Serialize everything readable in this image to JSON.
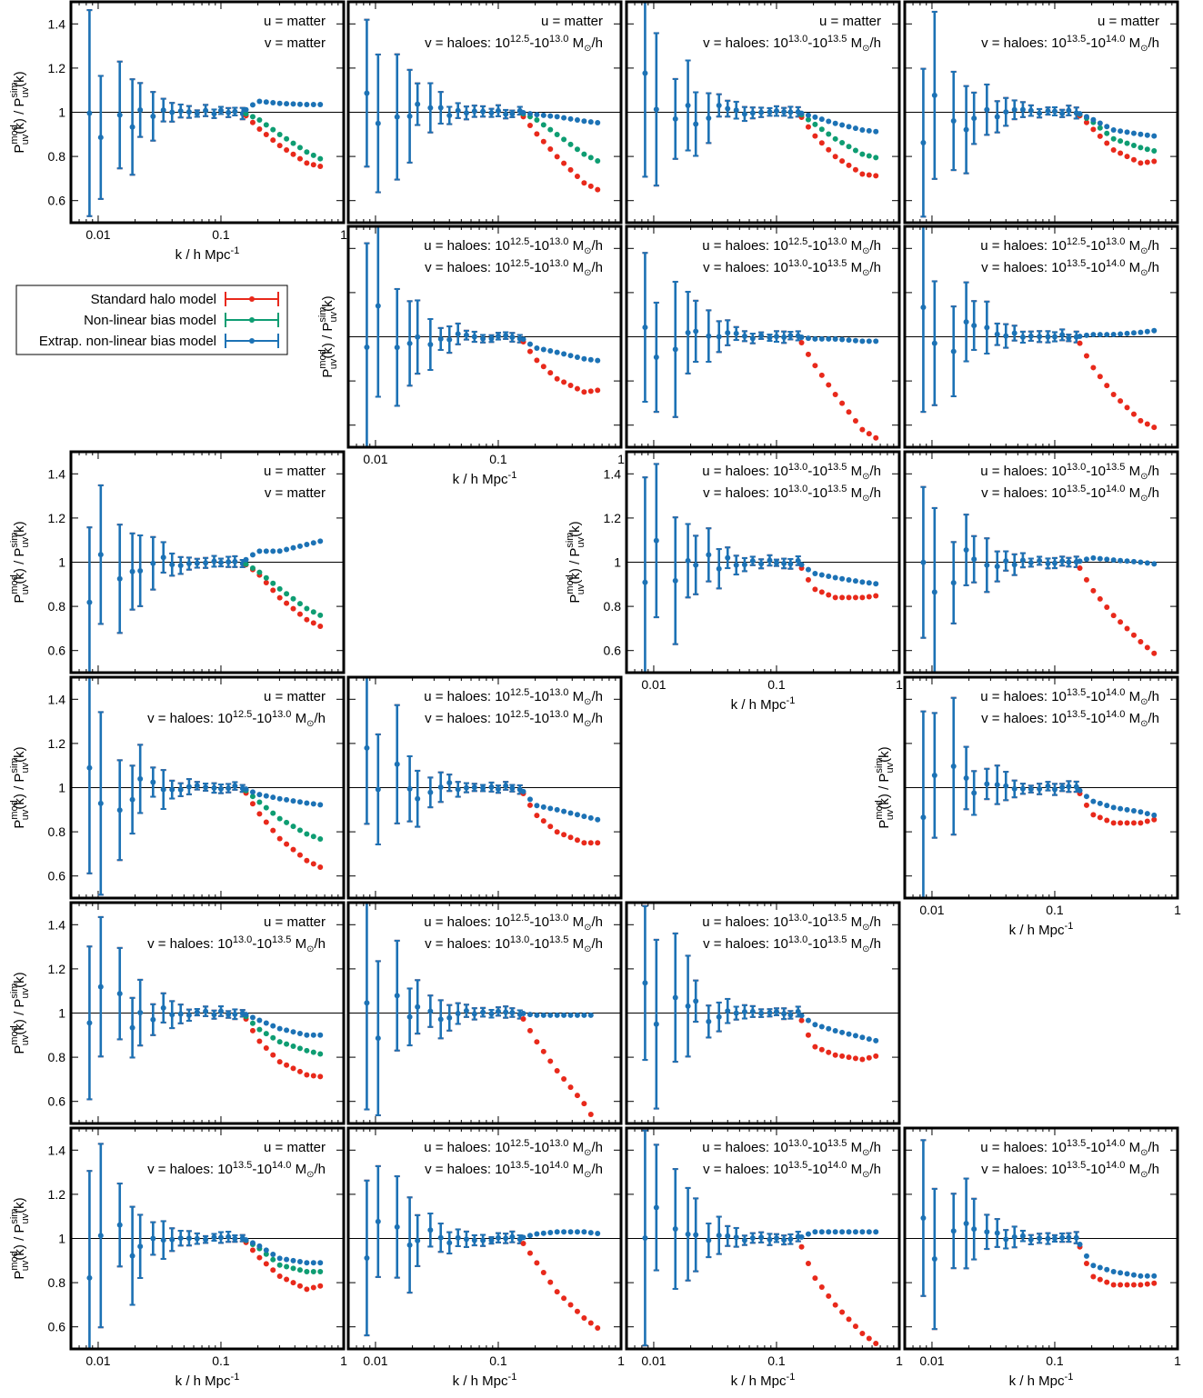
{
  "figure": {
    "xlabel": "k / h Mpc",
    "xlabel_sup": "-1",
    "ylabel": {
      "P": "P",
      "sub": "uv",
      "sup_mod": "mod",
      "sup_sim": "sim",
      "mid": "(k) / ",
      "end": "(k)"
    },
    "xticks": [
      "0.01",
      "0.1",
      "1"
    ],
    "yticks": [
      "0.6",
      "0.8",
      "1",
      "1.2",
      "1.4"
    ],
    "colors": {
      "standard": "#e8291b",
      "nonlinear": "#0e9d72",
      "extrap": "#1c72b5"
    },
    "legend": {
      "items": [
        {
          "label": "Standard halo model",
          "color": "#e8291b"
        },
        {
          "label": "Non-linear bias model",
          "color": "#0e9d72"
        },
        {
          "label": "Extrap. non-linear bias model",
          "color": "#1c72b5"
        }
      ]
    },
    "annotation_labels": {
      "u_matter": "u = matter",
      "v_matter": "v = matter",
      "bin_1": "10^12.5-10^13.0",
      "bin_2": "10^13.0-10^13.5",
      "bin_3": "10^13.5-10^14.0",
      "haloes_prefix": "haloes:",
      "unit": "M_sun/h"
    }
  },
  "chart_data": [
    {
      "type": "scatter",
      "row": 0,
      "col": 0,
      "u": "u = matter",
      "v": "v = matter",
      "xlim": [
        0.006,
        1
      ],
      "ylim": [
        0.5,
        1.5
      ],
      "xscale": "log",
      "series": [
        "standard",
        "nonlinear",
        "extrap"
      ],
      "k": [
        0.2,
        0.3,
        0.5,
        0.7
      ],
      "standard": [
        0.93,
        0.85,
        0.77,
        0.75
      ],
      "nonlinear": [
        0.97,
        0.9,
        0.82,
        0.78
      ],
      "extrap": [
        1.05,
        1.04,
        1.035,
        1.035
      ]
    },
    {
      "type": "scatter",
      "row": 0,
      "col": 1,
      "u": "u = matter",
      "v": "v = haloes: 10^12.5-10^13.0 M_sun/h",
      "xlim": [
        0.006,
        1
      ],
      "ylim": [
        0.5,
        1.5
      ],
      "xscale": "log",
      "k": [
        0.2,
        0.3,
        0.5,
        0.7
      ],
      "standard": [
        0.91,
        0.8,
        0.68,
        0.64
      ],
      "nonlinear": [
        0.97,
        0.9,
        0.81,
        0.77
      ],
      "extrap": [
        0.99,
        0.98,
        0.96,
        0.95
      ]
    },
    {
      "type": "scatter",
      "row": 0,
      "col": 2,
      "u": "u = matter",
      "v": "v = haloes: 10^13.0-10^13.5 M_sun/h",
      "xlim": [
        0.006,
        1
      ],
      "ylim": [
        0.5,
        1.5
      ],
      "xscale": "log",
      "k": [
        0.2,
        0.3,
        0.5,
        0.7
      ],
      "standard": [
        0.9,
        0.8,
        0.72,
        0.71
      ],
      "nonlinear": [
        0.95,
        0.88,
        0.81,
        0.79
      ],
      "extrap": [
        0.98,
        0.95,
        0.92,
        0.91
      ]
    },
    {
      "type": "scatter",
      "row": 0,
      "col": 3,
      "u": "u = matter",
      "v": "v = haloes: 10^13.5-10^14.0 M_sun/h",
      "xlim": [
        0.006,
        1
      ],
      "ylim": [
        0.5,
        1.5
      ],
      "xscale": "log",
      "k": [
        0.2,
        0.3,
        0.5,
        0.7
      ],
      "standard": [
        0.93,
        0.83,
        0.77,
        0.78
      ],
      "nonlinear": [
        0.96,
        0.88,
        0.84,
        0.82
      ],
      "extrap": [
        0.97,
        0.92,
        0.9,
        0.89
      ]
    },
    {
      "type": "scatter",
      "row": 1,
      "col": 1,
      "u": "u = haloes: 10^12.5-10^13.0 M_sun/h",
      "v": "v = haloes: 10^12.5-10^13.0 M_sun/h",
      "k": [
        0.2,
        0.3,
        0.5,
        0.7
      ],
      "standard": [
        0.9,
        0.81,
        0.75,
        0.76
      ],
      "extrap": [
        0.95,
        0.93,
        0.9,
        0.89
      ]
    },
    {
      "type": "scatter",
      "row": 1,
      "col": 2,
      "u": "u = haloes: 10^12.5-10^13.0 M_sun/h",
      "v": "v = haloes: 10^13.0-10^13.5 M_sun/h",
      "k": [
        0.2,
        0.3,
        0.5,
        0.7
      ],
      "standard": [
        0.88,
        0.74,
        0.58,
        0.53
      ],
      "extrap": [
        0.99,
        0.99,
        0.98,
        0.98
      ]
    },
    {
      "type": "scatter",
      "row": 1,
      "col": 3,
      "u": "u = haloes: 10^12.5-10^13.0 M_sun/h",
      "v": "v = haloes: 10^13.5-10^14.0 M_sun/h",
      "k": [
        0.2,
        0.3,
        0.5,
        0.7
      ],
      "standard": [
        0.87,
        0.74,
        0.62,
        0.58
      ],
      "extrap": [
        1.01,
        1.01,
        1.02,
        1.03
      ]
    },
    {
      "type": "scatter",
      "row": 2,
      "col": 0,
      "u": "u = matter",
      "v": "v = matter",
      "k": [
        0.2,
        0.3,
        0.5,
        0.7
      ],
      "standard": [
        0.95,
        0.84,
        0.74,
        0.7
      ],
      "nonlinear": [
        0.96,
        0.88,
        0.79,
        0.75
      ],
      "extrap": [
        1.05,
        1.05,
        1.08,
        1.1
      ]
    },
    {
      "type": "scatter",
      "row": 2,
      "col": 2,
      "u": "u = haloes: 10^13.0-10^13.5 M_sun/h",
      "v": "v = haloes: 10^13.0-10^13.5 M_sun/h",
      "k": [
        0.2,
        0.3,
        0.5,
        0.7
      ],
      "standard": [
        0.88,
        0.84,
        0.84,
        0.85
      ],
      "extrap": [
        0.95,
        0.93,
        0.91,
        0.9
      ]
    },
    {
      "type": "scatter",
      "row": 2,
      "col": 3,
      "u": "u = haloes: 10^13.0-10^13.5 M_sun/h",
      "v": "v = haloes: 10^13.5-10^14.0 M_sun/h",
      "k": [
        0.2,
        0.3,
        0.5,
        0.7
      ],
      "standard": [
        0.88,
        0.76,
        0.64,
        0.57
      ],
      "extrap": [
        1.02,
        1.01,
        1.0,
        0.99
      ]
    },
    {
      "type": "scatter",
      "row": 3,
      "col": 0,
      "u": "u = matter",
      "v": "v = haloes: 10^12.5-10^13.0 M_sun/h",
      "k": [
        0.2,
        0.3,
        0.5,
        0.7
      ],
      "standard": [
        0.89,
        0.77,
        0.67,
        0.63
      ],
      "nonlinear": [
        0.94,
        0.86,
        0.79,
        0.76
      ],
      "extrap": [
        0.97,
        0.95,
        0.93,
        0.92
      ]
    },
    {
      "type": "scatter",
      "row": 3,
      "col": 1,
      "u": "u = haloes: 10^12.5-10^13.0 M_sun/h",
      "v": "v = haloes: 10^12.5-10^13.0 M_sun/h",
      "k": [
        0.2,
        0.3,
        0.5,
        0.7
      ],
      "standard": [
        0.88,
        0.8,
        0.75,
        0.75
      ],
      "extrap": [
        0.92,
        0.9,
        0.87,
        0.85
      ]
    },
    {
      "type": "scatter",
      "row": 3,
      "col": 3,
      "u": "u = haloes: 10^13.5-10^14.0 M_sun/h",
      "v": "v = haloes: 10^13.5-10^14.0 M_sun/h",
      "k": [
        0.2,
        0.3,
        0.5,
        0.7
      ],
      "standard": [
        0.88,
        0.84,
        0.84,
        0.86
      ],
      "extrap": [
        0.94,
        0.91,
        0.89,
        0.87
      ]
    },
    {
      "type": "scatter",
      "row": 4,
      "col": 0,
      "u": "u = matter",
      "v": "v = haloes: 10^13.0-10^13.5 M_sun/h",
      "k": [
        0.2,
        0.3,
        0.5,
        0.7
      ],
      "standard": [
        0.88,
        0.78,
        0.72,
        0.71
      ],
      "nonlinear": [
        0.93,
        0.87,
        0.83,
        0.81
      ],
      "extrap": [
        0.97,
        0.93,
        0.9,
        0.9
      ]
    },
    {
      "type": "scatter",
      "row": 4,
      "col": 1,
      "u": "u = haloes: 10^12.5-10^13.0 M_sun/h",
      "v": "v = haloes: 10^13.0-10^13.5 M_sun/h",
      "k": [
        0.2,
        0.3,
        0.5,
        0.6
      ],
      "standard": [
        0.88,
        0.74,
        0.59,
        0.52
      ],
      "extrap": [
        0.99,
        0.99,
        0.99,
        0.99
      ]
    },
    {
      "type": "scatter",
      "row": 4,
      "col": 2,
      "u": "u = haloes: 10^13.0-10^13.5 M_sun/h",
      "v": "v = haloes: 10^13.0-10^13.5 M_sun/h",
      "k": [
        0.2,
        0.3,
        0.5,
        0.7
      ],
      "standard": [
        0.85,
        0.81,
        0.79,
        0.81
      ],
      "extrap": [
        0.95,
        0.92,
        0.89,
        0.87
      ]
    },
    {
      "type": "scatter",
      "row": 5,
      "col": 0,
      "u": "u = matter",
      "v": "v = haloes: 10^13.5-10^14.0 M_sun/h",
      "k": [
        0.2,
        0.3,
        0.5,
        0.7
      ],
      "standard": [
        0.92,
        0.83,
        0.77,
        0.79
      ],
      "nonlinear": [
        0.96,
        0.88,
        0.85,
        0.85
      ],
      "extrap": [
        0.97,
        0.91,
        0.89,
        0.89
      ]
    },
    {
      "type": "scatter",
      "row": 5,
      "col": 1,
      "u": "u = haloes: 10^12.5-10^13.0 M_sun/h",
      "v": "v = haloes: 10^13.5-10^14.0 M_sun/h",
      "k": [
        0.2,
        0.3,
        0.5,
        0.7
      ],
      "standard": [
        0.9,
        0.76,
        0.64,
        0.58
      ],
      "extrap": [
        1.02,
        1.03,
        1.03,
        1.02
      ]
    },
    {
      "type": "scatter",
      "row": 5,
      "col": 2,
      "u": "u = haloes: 10^13.0-10^13.5 M_sun/h",
      "v": "v = haloes: 10^13.5-10^14.0 M_sun/h",
      "k": [
        0.2,
        0.3,
        0.5,
        0.7
      ],
      "standard": [
        0.83,
        0.7,
        0.57,
        0.51
      ],
      "extrap": [
        1.03,
        1.03,
        1.03,
        1.03
      ]
    },
    {
      "type": "scatter",
      "row": 5,
      "col": 3,
      "u": "u = haloes: 10^13.5-10^14.0 M_sun/h",
      "v": "v = haloes: 10^13.5-10^14.0 M_sun/h",
      "k": [
        0.2,
        0.3,
        0.5,
        0.7
      ],
      "standard": [
        0.83,
        0.79,
        0.79,
        0.8
      ],
      "extrap": [
        0.88,
        0.85,
        0.83,
        0.83
      ]
    }
  ]
}
